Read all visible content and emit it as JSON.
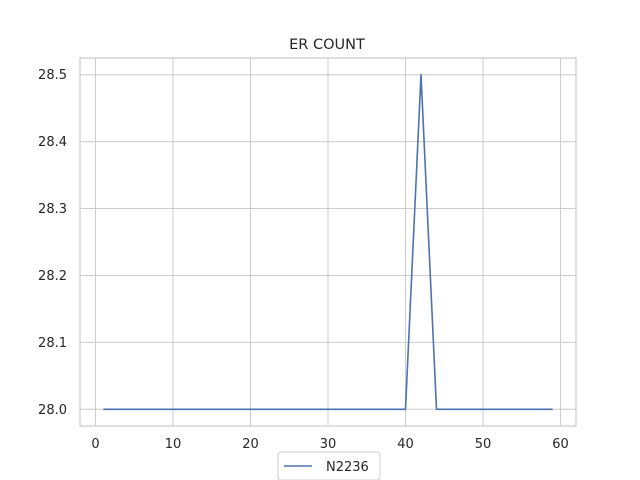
{
  "chart_data": {
    "type": "line",
    "title": "ER COUNT",
    "xlabel": "",
    "ylabel": "",
    "xlim": [
      -2,
      62
    ],
    "ylim": [
      27.975,
      28.525
    ],
    "x_ticks": [
      0,
      10,
      20,
      30,
      40,
      50,
      60
    ],
    "y_ticks": [
      28.0,
      28.1,
      28.2,
      28.3,
      28.4,
      28.5
    ],
    "y_tick_labels": [
      "28.0",
      "28.1",
      "28.2",
      "28.3",
      "28.4",
      "28.5"
    ],
    "grid": true,
    "legend": {
      "placement": "bottom-center"
    },
    "series": [
      {
        "name": "N2236",
        "color": "#4c72b0",
        "x": [
          1,
          40,
          42,
          44,
          59
        ],
        "y": [
          28.0,
          28.0,
          28.5,
          28.0,
          28.0
        ]
      }
    ]
  }
}
